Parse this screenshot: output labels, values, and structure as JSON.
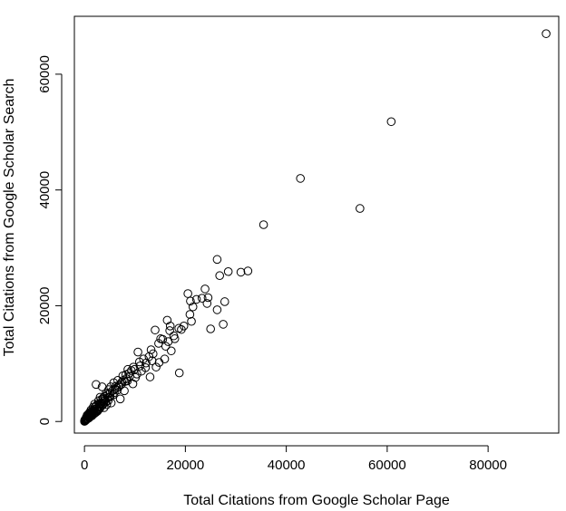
{
  "chart_data": {
    "type": "scatter",
    "xlabel": "Total Citations from Google Scholar Page",
    "ylabel": "Total Citations from Google Scholar Search",
    "xlim": [
      -2000,
      94000
    ],
    "ylim": [
      -2000,
      70000
    ],
    "xticks": [
      0,
      20000,
      40000,
      60000,
      80000
    ],
    "yticks": [
      0,
      20000,
      40000,
      60000
    ],
    "xtick_labels": [
      "0",
      "20000",
      "40000",
      "60000",
      "80000"
    ],
    "ytick_labels": [
      "0",
      "20000",
      "40000",
      "60000"
    ],
    "grid": false,
    "marker": "open-circle",
    "point_color": "#000000",
    "points": [
      [
        91500,
        67000
      ],
      [
        60800,
        51800
      ],
      [
        54600,
        36800
      ],
      [
        42800,
        42000
      ],
      [
        35500,
        34000
      ],
      [
        32400,
        26000
      ],
      [
        31000,
        25800
      ],
      [
        28500,
        25900
      ],
      [
        27800,
        20700
      ],
      [
        27500,
        16800
      ],
      [
        26800,
        25200
      ],
      [
        26300,
        28000
      ],
      [
        26300,
        19300
      ],
      [
        25000,
        16000
      ],
      [
        24500,
        21400
      ],
      [
        24300,
        20400
      ],
      [
        23900,
        22900
      ],
      [
        23300,
        21300
      ],
      [
        22200,
        21100
      ],
      [
        21500,
        19800
      ],
      [
        21200,
        17300
      ],
      [
        21000,
        20800
      ],
      [
        20900,
        18500
      ],
      [
        20500,
        22100
      ],
      [
        19700,
        16500
      ],
      [
        19200,
        15900
      ],
      [
        18800,
        8400
      ],
      [
        18700,
        16100
      ],
      [
        17900,
        14300
      ],
      [
        17700,
        14800
      ],
      [
        17200,
        12200
      ],
      [
        17000,
        16500
      ],
      [
        16900,
        15700
      ],
      [
        16600,
        13800
      ],
      [
        16400,
        17500
      ],
      [
        16100,
        13000
      ],
      [
        15900,
        10800
      ],
      [
        15500,
        14200
      ],
      [
        15100,
        14300
      ],
      [
        14800,
        10200
      ],
      [
        14700,
        13500
      ],
      [
        14200,
        9400
      ],
      [
        14000,
        15800
      ],
      [
        13600,
        11700
      ],
      [
        13400,
        10500
      ],
      [
        13200,
        12400
      ],
      [
        13000,
        7700
      ],
      [
        12800,
        11200
      ],
      [
        12200,
        10100
      ],
      [
        12100,
        9300
      ],
      [
        11700,
        10800
      ],
      [
        11300,
        8700
      ],
      [
        10900,
        10300
      ],
      [
        10600,
        12000
      ],
      [
        10400,
        8200
      ],
      [
        10100,
        7600
      ],
      [
        9700,
        9400
      ],
      [
        9600,
        6500
      ],
      [
        9300,
        8800
      ],
      [
        9000,
        7800
      ],
      [
        8600,
        9000
      ],
      [
        8500,
        7000
      ],
      [
        8200,
        8100
      ],
      [
        7900,
        5300
      ],
      [
        7600,
        7900
      ],
      [
        7400,
        6800
      ],
      [
        7100,
        3900
      ],
      [
        6900,
        6300
      ],
      [
        6600,
        7100
      ],
      [
        6500,
        5400
      ],
      [
        6200,
        6100
      ],
      [
        6000,
        5600
      ],
      [
        5800,
        6700
      ],
      [
        5700,
        4600
      ],
      [
        5500,
        5300
      ],
      [
        5300,
        3200
      ],
      [
        5200,
        6000
      ],
      [
        5100,
        4900
      ],
      [
        4900,
        4200
      ],
      [
        4800,
        5500
      ],
      [
        4700,
        3600
      ],
      [
        4500,
        4700
      ],
      [
        4400,
        2900
      ],
      [
        4300,
        4900
      ],
      [
        4100,
        3700
      ],
      [
        4000,
        4300
      ],
      [
        3900,
        2400
      ],
      [
        3800,
        3500
      ],
      [
        3700,
        4100
      ],
      [
        3600,
        3000
      ],
      [
        3500,
        6000
      ],
      [
        3400,
        3800
      ],
      [
        3300,
        2600
      ],
      [
        3200,
        3200
      ],
      [
        3100,
        4200
      ],
      [
        3000,
        2200
      ],
      [
        2900,
        3000
      ],
      [
        2800,
        3600
      ],
      [
        2700,
        2500
      ],
      [
        2600,
        1800
      ],
      [
        2500,
        2900
      ],
      [
        2400,
        2200
      ],
      [
        2300,
        6400
      ],
      [
        2300,
        1600
      ],
      [
        2200,
        2600
      ],
      [
        2100,
        1900
      ],
      [
        2000,
        3000
      ],
      [
        1950,
        1400
      ],
      [
        1900,
        2100
      ],
      [
        1800,
        1700
      ],
      [
        1750,
        2500
      ],
      [
        1700,
        1200
      ],
      [
        1600,
        1900
      ],
      [
        1550,
        1500
      ],
      [
        1500,
        1000
      ],
      [
        1400,
        1700
      ],
      [
        1350,
        1300
      ],
      [
        1300,
        2000
      ],
      [
        1250,
        900
      ],
      [
        1200,
        1400
      ],
      [
        1100,
        1100
      ],
      [
        1050,
        1600
      ],
      [
        1000,
        800
      ],
      [
        950,
        1200
      ],
      [
        900,
        600
      ],
      [
        850,
        1000
      ],
      [
        800,
        1300
      ],
      [
        750,
        700
      ],
      [
        700,
        900
      ],
      [
        650,
        500
      ],
      [
        600,
        800
      ],
      [
        550,
        1100
      ],
      [
        500,
        400
      ],
      [
        450,
        600
      ],
      [
        400,
        800
      ],
      [
        350,
        300
      ],
      [
        300,
        500
      ],
      [
        250,
        200
      ],
      [
        200,
        400
      ],
      [
        150,
        150
      ],
      [
        100,
        300
      ],
      [
        60,
        80
      ],
      [
        30,
        150
      ],
      [
        10,
        20
      ],
      [
        5100,
        4300
      ],
      [
        4600,
        4100
      ],
      [
        4200,
        3400
      ],
      [
        3950,
        3900
      ],
      [
        3650,
        2900
      ],
      [
        3350,
        3100
      ],
      [
        3050,
        2700
      ],
      [
        2750,
        2100
      ],
      [
        2450,
        1900
      ],
      [
        2150,
        1500
      ],
      [
        1850,
        1300
      ],
      [
        5900,
        5000
      ],
      [
        6400,
        5800
      ],
      [
        6800,
        6000
      ],
      [
        7300,
        6400
      ],
      [
        7700,
        7100
      ],
      [
        8000,
        6900
      ],
      [
        8300,
        7400
      ],
      [
        8800,
        8300
      ],
      [
        9900,
        9000
      ],
      [
        11000,
        9600
      ]
    ]
  }
}
